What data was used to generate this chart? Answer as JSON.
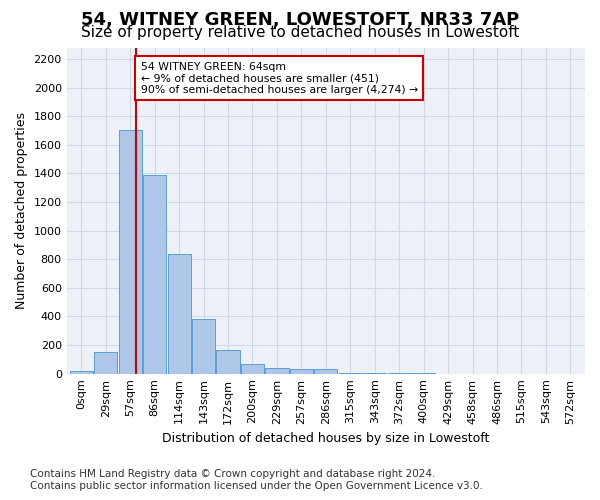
{
  "title": "54, WITNEY GREEN, LOWESTOFT, NR33 7AP",
  "subtitle": "Size of property relative to detached houses in Lowestoft",
  "xlabel": "Distribution of detached houses by size in Lowestoft",
  "ylabel": "Number of detached properties",
  "bin_labels": [
    "0sqm",
    "29sqm",
    "57sqm",
    "86sqm",
    "114sqm",
    "143sqm",
    "172sqm",
    "200sqm",
    "229sqm",
    "257sqm",
    "286sqm",
    "315sqm",
    "343sqm",
    "372sqm",
    "400sqm",
    "429sqm",
    "458sqm",
    "486sqm",
    "515sqm",
    "543sqm",
    "572sqm"
  ],
  "bar_values": [
    20,
    155,
    1700,
    1390,
    835,
    385,
    165,
    65,
    40,
    30,
    30,
    5,
    5,
    5,
    5,
    0,
    0,
    0,
    0,
    0,
    0
  ],
  "bar_color": "#aec6e8",
  "bar_edge_color": "#5a9fd4",
  "grid_color": "#d0d8e8",
  "property_line_color": "#cc0000",
  "annotation_text": "54 WITNEY GREEN: 64sqm\n← 9% of detached houses are smaller (451)\n90% of semi-detached houses are larger (4,274) →",
  "annotation_box_color": "#ffffff",
  "annotation_box_edge": "#cc0000",
  "ylim": [
    0,
    2280
  ],
  "yticks": [
    0,
    200,
    400,
    600,
    800,
    1000,
    1200,
    1400,
    1600,
    1800,
    2000,
    2200
  ],
  "footer_line1": "Contains HM Land Registry data © Crown copyright and database right 2024.",
  "footer_line2": "Contains public sector information licensed under the Open Government Licence v3.0.",
  "title_fontsize": 13,
  "subtitle_fontsize": 11,
  "axis_label_fontsize": 9,
  "tick_fontsize": 8,
  "footer_fontsize": 7.5
}
